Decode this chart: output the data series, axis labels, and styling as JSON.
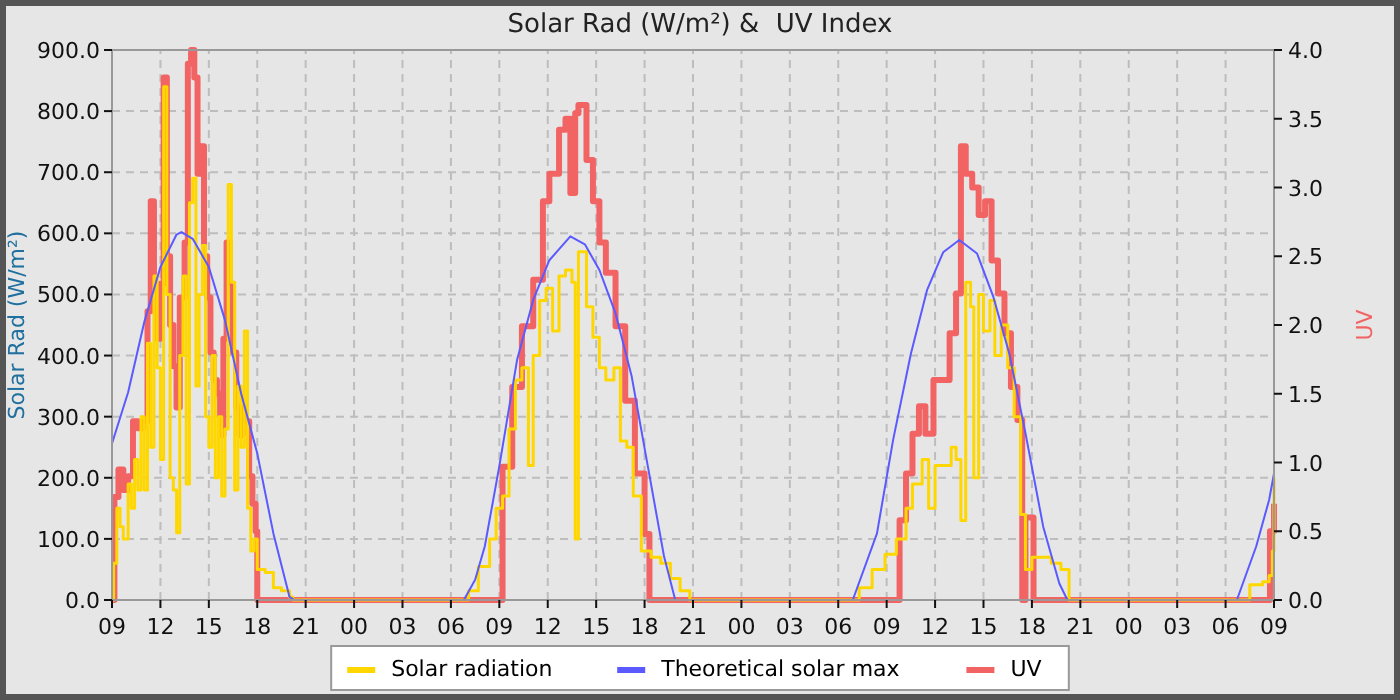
{
  "chart_data": {
    "type": "line",
    "title": "Solar Rad (W/m²) &  UV Index",
    "ylabel": "Solar Rad (W/m²)",
    "y2label": "UV",
    "xlim": [
      9,
      81
    ],
    "xticks": [
      {
        "value": 9,
        "label": "09"
      },
      {
        "value": 12,
        "label": "12"
      },
      {
        "value": 15,
        "label": "15"
      },
      {
        "value": 18,
        "label": "18"
      },
      {
        "value": 21,
        "label": "21"
      },
      {
        "value": 24,
        "label": "00"
      },
      {
        "value": 27,
        "label": "03"
      },
      {
        "value": 30,
        "label": "06"
      },
      {
        "value": 33,
        "label": "09"
      },
      {
        "value": 36,
        "label": "12"
      },
      {
        "value": 39,
        "label": "15"
      },
      {
        "value": 42,
        "label": "18"
      },
      {
        "value": 45,
        "label": "21"
      },
      {
        "value": 48,
        "label": "00"
      },
      {
        "value": 51,
        "label": "03"
      },
      {
        "value": 54,
        "label": "06"
      },
      {
        "value": 57,
        "label": "09"
      },
      {
        "value": 60,
        "label": "12"
      },
      {
        "value": 63,
        "label": "15"
      },
      {
        "value": 66,
        "label": "18"
      },
      {
        "value": 69,
        "label": "21"
      },
      {
        "value": 72,
        "label": "00"
      },
      {
        "value": 75,
        "label": "03"
      },
      {
        "value": 78,
        "label": "06"
      },
      {
        "value": 81,
        "label": "09"
      }
    ],
    "ylim": [
      0,
      900
    ],
    "yticks": [
      {
        "value": 0,
        "label": "0.0"
      },
      {
        "value": 100,
        "label": "100.0"
      },
      {
        "value": 200,
        "label": "200.0"
      },
      {
        "value": 300,
        "label": "300.0"
      },
      {
        "value": 400,
        "label": "400.0"
      },
      {
        "value": 500,
        "label": "500.0"
      },
      {
        "value": 600,
        "label": "600.0"
      },
      {
        "value": 700,
        "label": "700.0"
      },
      {
        "value": 800,
        "label": "800.0"
      },
      {
        "value": 900,
        "label": "900.0"
      }
    ],
    "y2lim": [
      0,
      4
    ],
    "y2ticks": [
      {
        "value": 0,
        "label": "0.0"
      },
      0.5,
      {
        "value": 1,
        "label": "1.0"
      },
      1.5,
      {
        "value": 2,
        "label": "2.0"
      },
      2.5,
      {
        "value": 3,
        "label": "3.0"
      },
      3.5,
      {
        "value": 4,
        "label": "4.0"
      }
    ],
    "grid": true,
    "legend": "bottom",
    "series": [
      {
        "name": "Solar radiation",
        "type": "step",
        "color": "#ffd700",
        "x": [
          9,
          9.1,
          9.3,
          9.5,
          9.7,
          10,
          10.2,
          10.4,
          10.6,
          10.8,
          11,
          11.2,
          11.4,
          11.6,
          11.8,
          12,
          12.2,
          12.4,
          12.6,
          12.8,
          13,
          13.2,
          13.4,
          13.6,
          13.8,
          14,
          14.2,
          14.4,
          14.6,
          14.8,
          15,
          15.2,
          15.4,
          15.6,
          15.8,
          16,
          16.2,
          16.4,
          16.6,
          16.8,
          17,
          17.2,
          17.4,
          17.6,
          17.8,
          18,
          18.5,
          19,
          19.5,
          20,
          20.2,
          30.5,
          31.1,
          31.7,
          32.4,
          32.8,
          33.2,
          33.6,
          34,
          34.4,
          34.8,
          35.1,
          35.5,
          35.9,
          36.3,
          36.7,
          37.1,
          37.5,
          37.7,
          37.9,
          38.4,
          38.8,
          39.2,
          39.6,
          40.1,
          40.5,
          40.9,
          41.3,
          41.8,
          42.4,
          43,
          43.6,
          44.2,
          44.8,
          54.5,
          55.3,
          56.1,
          56.9,
          57.6,
          58.2,
          58.6,
          59.2,
          59.6,
          60,
          60.6,
          61,
          61.3,
          61.6,
          61.9,
          62.2,
          62.4,
          62.7,
          63,
          63.4,
          63.7,
          64.1,
          64.5,
          64.9,
          65.3,
          65.6,
          66,
          66.6,
          67.2,
          67.8,
          68.3,
          78.5,
          79.5,
          80.3,
          80.7,
          80.9,
          81
        ],
        "values": [
          0,
          60,
          150,
          120,
          100,
          190,
          150,
          230,
          180,
          300,
          180,
          420,
          250,
          530,
          380,
          230,
          840,
          500,
          200,
          180,
          110,
          400,
          530,
          190,
          650,
          690,
          350,
          500,
          580,
          300,
          250,
          400,
          200,
          300,
          170,
          280,
          680,
          520,
          180,
          350,
          250,
          440,
          150,
          80,
          100,
          50,
          45,
          20,
          15,
          5,
          0,
          0,
          15,
          55,
          100,
          150,
          170,
          280,
          360,
          380,
          220,
          400,
          490,
          510,
          440,
          530,
          540,
          520,
          100,
          570,
          480,
          430,
          380,
          360,
          380,
          260,
          250,
          170,
          80,
          70,
          60,
          35,
          15,
          0,
          0,
          20,
          50,
          75,
          100,
          150,
          190,
          230,
          150,
          220,
          220,
          250,
          230,
          130,
          520,
          480,
          200,
          500,
          440,
          490,
          400,
          450,
          380,
          300,
          140,
          50,
          70,
          70,
          60,
          50,
          0,
          0,
          25,
          30,
          40,
          80,
          200
        ]
      },
      {
        "name": "Theoretical solar max",
        "color": "#5a5aff",
        "x": [
          9,
          10,
          11,
          12,
          13,
          13.3,
          14,
          15,
          16,
          17,
          18,
          19,
          20,
          20.3,
          30.8,
          31.5,
          32.1,
          33,
          34.1,
          35.1,
          36.1,
          37.4,
          38.3,
          39.2,
          40.2,
          41.2,
          42.2,
          43.2,
          43.9,
          54.9,
          56.4,
          57.4,
          58.5,
          59.5,
          60.5,
          61.5,
          62.6,
          63.6,
          64.6,
          65.6,
          66.7,
          67.7,
          68.2,
          78.7,
          79.9,
          80.7,
          81
        ],
        "values": [
          256,
          340,
          455,
          545,
          598,
          602,
          591,
          545,
          458,
          338,
          240,
          109,
          5,
          0,
          0,
          33,
          88,
          219,
          393,
          491,
          556,
          595,
          582,
          540,
          469,
          366,
          219,
          72,
          0,
          0,
          109,
          262,
          403,
          507,
          569,
          589,
          567,
          497,
          403,
          273,
          120,
          27,
          0,
          0,
          88,
          164,
          207
        ]
      },
      {
        "name": "UV",
        "type": "step",
        "axis": "y2",
        "color": "#f26464",
        "x": [
          9,
          9.15,
          9.4,
          9.7,
          10,
          10.3,
          10.6,
          10.9,
          11.2,
          11.4,
          11.6,
          11.8,
          12,
          12.2,
          12.4,
          12.6,
          12.8,
          13,
          13.2,
          13.5,
          13.7,
          13.9,
          14.1,
          14.3,
          14.5,
          14.7,
          14.9,
          15.1,
          15.3,
          15.5,
          15.7,
          15.9,
          16.1,
          16.3,
          16.5,
          16.7,
          16.9,
          17.1,
          17.3,
          17.5,
          17.7,
          17.9,
          18,
          32.5,
          33.2,
          33.8,
          34.4,
          35.1,
          35.7,
          36.1,
          36.7,
          37.1,
          37.4,
          37.7,
          37.9,
          38.4,
          38.8,
          39.2,
          39.6,
          40.2,
          40.8,
          41.4,
          42,
          42.3,
          57.2,
          57.8,
          58.2,
          58.6,
          59,
          59.4,
          59.9,
          60.5,
          60.9,
          61.3,
          61.6,
          61.9,
          62.3,
          62.7,
          63.1,
          63.5,
          63.9,
          64.3,
          64.7,
          65.1,
          65.4,
          65.6,
          66,
          66.1,
          80.6,
          80.75,
          81
        ],
        "values": [
          0,
          0.75,
          0.95,
          0.8,
          0.9,
          1.3,
          1.25,
          1.3,
          2.1,
          2.9,
          2.2,
          1.9,
          2.3,
          3.8,
          2.5,
          2,
          1.7,
          1.4,
          2.2,
          2.6,
          3.9,
          4,
          3.8,
          3.1,
          3.3,
          2.5,
          2.2,
          1.8,
          1.6,
          1.5,
          1.2,
          1.9,
          2.6,
          2.3,
          1.8,
          1.4,
          1.2,
          1.4,
          1.3,
          0.9,
          0.7,
          0.5,
          0,
          0,
          0.97,
          1.55,
          1.99,
          2.33,
          2.9,
          3.1,
          3.42,
          3.5,
          2.96,
          3.54,
          3.6,
          3.2,
          2.9,
          2.6,
          2.38,
          1.99,
          1.45,
          0.92,
          0.48,
          0,
          0,
          0.58,
          0.92,
          1.21,
          1.41,
          1.21,
          1.6,
          1.6,
          1.94,
          2.23,
          3.3,
          3.1,
          3,
          2.8,
          2.9,
          2.47,
          2.23,
          1.94,
          1.55,
          1.31,
          0,
          0.6,
          0.6,
          0,
          0,
          0.5,
          0.7
        ]
      }
    ]
  }
}
